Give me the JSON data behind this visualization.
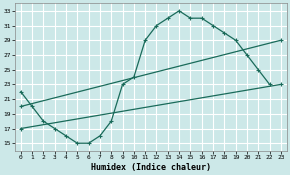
{
  "xlabel": "Humidex (Indice chaleur)",
  "background_color": "#cce8e8",
  "grid_color": "#ffffff",
  "line_color": "#1a6b5a",
  "xlim": [
    -0.5,
    23.5
  ],
  "ylim": [
    14,
    34
  ],
  "xticks": [
    0,
    1,
    2,
    3,
    4,
    5,
    6,
    7,
    8,
    9,
    10,
    11,
    12,
    13,
    14,
    15,
    16,
    17,
    18,
    19,
    20,
    21,
    22,
    23
  ],
  "yticks": [
    15,
    17,
    19,
    21,
    23,
    25,
    27,
    29,
    31,
    33
  ],
  "line1_x": [
    0,
    1,
    2,
    3,
    4,
    5,
    6,
    7,
    8,
    9,
    10,
    11,
    12,
    13,
    14,
    15,
    16,
    17,
    18,
    19,
    20,
    21,
    22
  ],
  "line1_y": [
    22,
    20,
    18,
    17,
    16,
    15,
    15,
    16,
    18,
    23,
    24,
    29,
    31,
    32,
    33,
    32,
    32,
    31,
    30,
    29,
    27,
    25,
    23
  ],
  "line2_x": [
    0,
    23
  ],
  "line2_y": [
    17,
    23
  ],
  "line3_x": [
    0,
    23
  ],
  "line3_y": [
    20,
    29
  ]
}
